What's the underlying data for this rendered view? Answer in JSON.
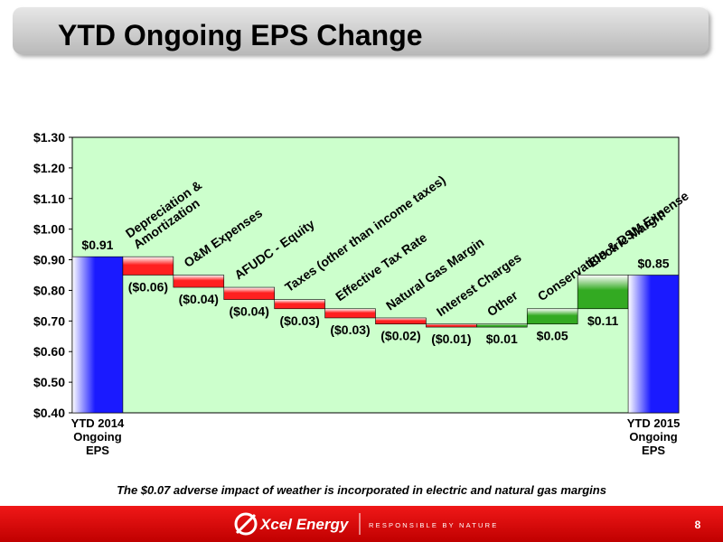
{
  "title": "YTD Ongoing EPS Change",
  "footnote": "The $0.07 adverse impact of weather is incorporated in electric and natural gas margins",
  "footer": {
    "brand": "Xcel Energy",
    "tagline": "RESPONSIBLE BY NATURE",
    "page": "8"
  },
  "chart_data": {
    "type": "waterfall",
    "categories": [
      "YTD 2014\nOngoing\nEPS",
      "Depreciation &\nAmortization",
      "O&M Expenses",
      "AFUDC - Equity",
      "Taxes (other than income taxes)",
      "Effective Tax Rate",
      "Natural Gas Margin",
      "Interest Charges",
      "Other",
      "Conservation & DSM Expense",
      "Electric Margin",
      "YTD 2015\nOngoing\nEPS"
    ],
    "values": [
      0.91,
      -0.06,
      -0.04,
      -0.04,
      -0.03,
      -0.03,
      -0.02,
      -0.01,
      0.01,
      0.05,
      0.11,
      0.85
    ],
    "value_labels": [
      "$0.91",
      "($0.06)",
      "($0.04)",
      "($0.04)",
      "($0.03)",
      "($0.03)",
      "($0.02)",
      "($0.01)",
      "$0.01",
      "$0.05",
      "$0.11",
      "$0.85"
    ],
    "colors": {
      "total": "#1a1aff",
      "decrease": "#ff2020",
      "increase": "#33aa22"
    },
    "ylim": [
      0.4,
      1.3
    ],
    "yticks": [
      {
        "value": 0.4,
        "label": "$0.40"
      },
      {
        "value": 0.5,
        "label": "$0.50"
      },
      {
        "value": 0.6,
        "label": "$0.60"
      },
      {
        "value": 0.7,
        "label": "$0.70"
      },
      {
        "value": 0.8,
        "label": "$0.80"
      },
      {
        "value": 0.9,
        "label": "$0.90"
      },
      {
        "value": 1.0,
        "label": "$1.00"
      },
      {
        "value": 1.1,
        "label": "$1.10"
      },
      {
        "value": 1.2,
        "label": "$1.20"
      },
      {
        "value": 1.3,
        "label": "$1.30"
      }
    ]
  }
}
